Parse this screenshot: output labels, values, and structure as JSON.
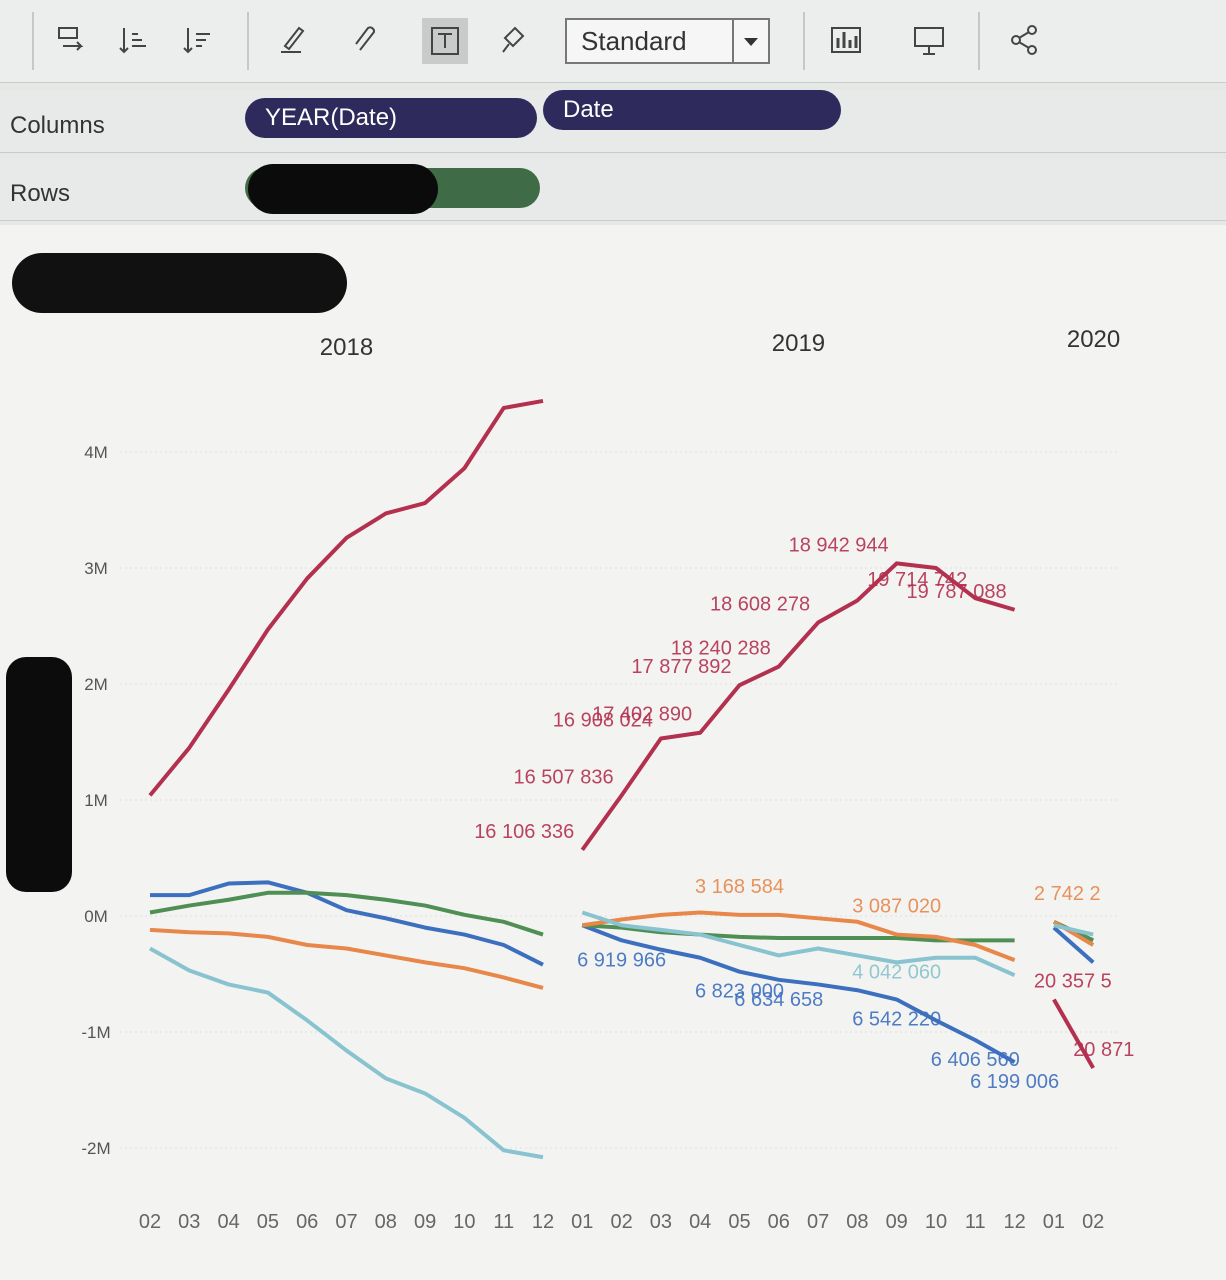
{
  "toolbar": {
    "fit": "Standard"
  },
  "shelves": {
    "columns": {
      "label": "Columns",
      "pills": [
        "YEAR(Date)",
        "Date"
      ]
    },
    "rows": {
      "label": "Rows"
    }
  },
  "chart_data": {
    "type": "line",
    "ylim": [
      -2.3,
      4.7
    ],
    "yticks": [
      {
        "value": -2,
        "label": "-2M"
      },
      {
        "value": -1,
        "label": "-1M"
      },
      {
        "value": 0,
        "label": "0M"
      },
      {
        "value": 1,
        "label": "1M"
      },
      {
        "value": 2,
        "label": "2M"
      },
      {
        "value": 3,
        "label": "3M"
      },
      {
        "value": 4,
        "label": "4M"
      }
    ],
    "grid": true,
    "colors": [
      "#b3304f",
      "#3d6fbf",
      "#4f8f54",
      "#e8874a",
      "#88c3cf"
    ],
    "panes": [
      {
        "year": "2018",
        "categories": [
          "02",
          "03",
          "04",
          "05",
          "06",
          "07",
          "08",
          "09",
          "10",
          "11",
          "12"
        ],
        "series": [
          {
            "values": [
              1.04,
              1.45,
              1.95,
              2.47,
              2.91,
              3.26,
              3.47,
              3.56,
              3.86,
              4.38,
              4.44
            ]
          },
          {
            "values": [
              0.18,
              0.18,
              0.28,
              0.29,
              0.2,
              0.05,
              -0.02,
              -0.1,
              -0.16,
              -0.25,
              -0.42
            ]
          },
          {
            "values": [
              0.03,
              0.09,
              0.14,
              0.2,
              0.2,
              0.18,
              0.14,
              0.09,
              0.01,
              -0.05,
              -0.16
            ]
          },
          {
            "values": [
              -0.12,
              -0.14,
              -0.15,
              -0.18,
              -0.25,
              -0.28,
              -0.34,
              -0.4,
              -0.45,
              -0.53,
              -0.62
            ]
          },
          {
            "values": [
              -0.28,
              -0.47,
              -0.59,
              -0.66,
              -0.9,
              -1.16,
              -1.4,
              -1.53,
              -1.74,
              -2.02,
              -2.08
            ]
          }
        ]
      },
      {
        "year": "2019",
        "categories": [
          "01",
          "02",
          "03",
          "04",
          "05",
          "06",
          "07",
          "08",
          "09",
          "10",
          "11",
          "12"
        ],
        "series": [
          {
            "values": [
              0.57,
              1.04,
              1.53,
              1.58,
              1.99,
              2.15,
              2.53,
              2.72,
              3.04,
              3.0,
              2.74,
              2.64
            ],
            "point_labels": [
              "16 106 336",
              "16 507 836",
              "16 908 024",
              "17 402 890",
              "17 877 892",
              "18 240 288",
              "18 608 278",
              null,
              "18 942 944",
              null,
              "19 714 742",
              "19 787 088"
            ]
          },
          {
            "values": [
              -0.08,
              -0.21,
              -0.29,
              -0.36,
              -0.48,
              -0.55,
              -0.59,
              -0.64,
              -0.72,
              -0.9,
              -1.07,
              -1.26
            ],
            "point_labels": [
              null,
              "6 919 966",
              null,
              null,
              "6 823 000",
              "6 634 658",
              null,
              null,
              "6 542 220",
              null,
              "6 406 560",
              "6 199 006"
            ]
          },
          {
            "values": [
              -0.08,
              -0.1,
              -0.14,
              -0.16,
              -0.18,
              -0.19,
              -0.19,
              -0.19,
              -0.19,
              -0.21,
              -0.21,
              -0.21
            ]
          },
          {
            "values": [
              -0.08,
              -0.03,
              0.01,
              0.03,
              0.01,
              0.01,
              -0.02,
              -0.05,
              -0.16,
              -0.18,
              -0.25,
              -0.38
            ],
            "point_labels": [
              null,
              null,
              null,
              null,
              "3 168 584",
              null,
              null,
              null,
              "3 087 020",
              null,
              null,
              null
            ]
          },
          {
            "values": [
              0.03,
              -0.08,
              -0.12,
              -0.16,
              -0.25,
              -0.34,
              -0.28,
              -0.34,
              -0.4,
              -0.36,
              -0.36,
              -0.51
            ],
            "point_labels": [
              null,
              null,
              null,
              null,
              null,
              null,
              null,
              null,
              "4 042 060",
              null,
              null,
              null
            ]
          }
        ]
      },
      {
        "year": "2020",
        "categories": [
          "01",
          "02"
        ],
        "series": [
          {
            "values": [
              -0.72,
              -1.31
            ],
            "point_labels": [
              "20 357 5",
              "20 871"
            ]
          },
          {
            "values": [
              -0.1,
              -0.4
            ]
          },
          {
            "values": [
              -0.05,
              -0.21
            ]
          },
          {
            "values": [
              -0.05,
              -0.25
            ],
            "point_labels": [
              "2 742 2",
              null
            ]
          },
          {
            "values": [
              -0.08,
              -0.16
            ]
          }
        ]
      }
    ]
  }
}
